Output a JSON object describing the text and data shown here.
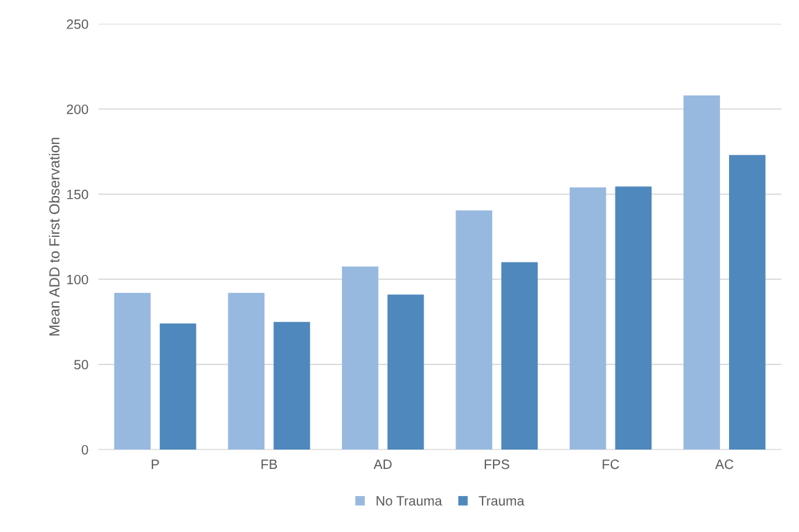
{
  "chart_data": {
    "type": "bar",
    "ylabel": "Mean ADD to First Observation",
    "categories": [
      "P",
      "FB",
      "AD",
      "FPS",
      "FC",
      "AC"
    ],
    "series": [
      {
        "name": "No Trauma",
        "color": "#97b9e0",
        "values": [
          92,
          92,
          107.5,
          140.5,
          154,
          208
        ]
      },
      {
        "name": "Trauma",
        "color": "#4f88bd",
        "values": [
          74,
          75,
          91,
          110,
          154.5,
          173
        ]
      }
    ],
    "ylim": [
      0,
      250
    ],
    "yticks": [
      0,
      50,
      100,
      150,
      200,
      250
    ],
    "grid": "y",
    "legend": "bottom"
  }
}
